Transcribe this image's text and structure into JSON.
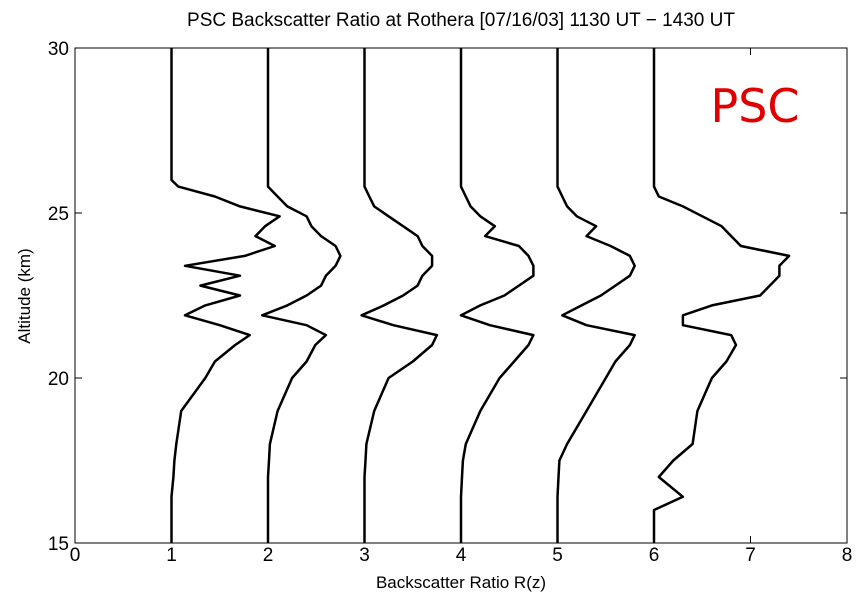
{
  "chart_data": {
    "type": "profile",
    "title": "PSC Backscatter Ratio at Rothera [07/16/03] 1130 UT − 1430 UT",
    "x_label": "Backscatter Ratio R(z)",
    "y_label": "Altitude (km)",
    "annotation": "PSC",
    "annotation_color": "#e00000",
    "xlim": [
      0,
      8
    ],
    "xticks": [
      0,
      1,
      2,
      3,
      4,
      5,
      6,
      7,
      8
    ],
    "ylim": [
      15,
      30
    ],
    "yticks": [
      15,
      20,
      25,
      30
    ],
    "grid": false,
    "y": [
      15,
      16,
      16.4,
      17,
      17.5,
      18,
      19,
      20,
      20.5,
      21,
      21.3,
      21.6,
      21.9,
      22.2,
      22.5,
      22.8,
      23.1,
      23.4,
      23.7,
      24,
      24.3,
      24.6,
      24.9,
      25.2,
      25.5,
      25.8,
      26,
      27,
      28,
      29,
      30
    ],
    "series": [
      {
        "color": "#000000",
        "values": [
          1,
          1,
          1,
          1.02,
          1.03,
          1.05,
          1.1,
          1.35,
          1.45,
          1.66,
          1.81,
          1.5,
          1.14,
          1.35,
          1.71,
          1.3,
          1.71,
          1.14,
          1.76,
          2.07,
          1.87,
          1.97,
          2.12,
          1.71,
          1.45,
          1.07,
          1,
          1,
          1,
          1,
          1
        ]
      },
      {
        "color": "#000000",
        "values": [
          2,
          2,
          2,
          2,
          2.01,
          2.02,
          2.1,
          2.25,
          2.4,
          2.49,
          2.6,
          2.4,
          1.94,
          2.2,
          2.4,
          2.55,
          2.6,
          2.7,
          2.75,
          2.7,
          2.55,
          2.45,
          2.4,
          2.2,
          2.1,
          2.0,
          2,
          2,
          2,
          2,
          2
        ]
      },
      {
        "color": "#000000",
        "values": [
          3,
          3,
          3,
          3,
          3.01,
          3.02,
          3.1,
          3.25,
          3.5,
          3.7,
          3.75,
          3.3,
          2.97,
          3.2,
          3.4,
          3.55,
          3.6,
          3.7,
          3.7,
          3.6,
          3.55,
          3.4,
          3.25,
          3.1,
          3.05,
          3.0,
          3,
          3,
          3,
          3,
          3
        ]
      },
      {
        "color": "#000000",
        "values": [
          4,
          4,
          4,
          4.01,
          4.02,
          4.05,
          4.2,
          4.4,
          4.55,
          4.7,
          4.75,
          4.3,
          4.0,
          4.2,
          4.45,
          4.6,
          4.75,
          4.75,
          4.7,
          4.6,
          4.25,
          4.35,
          4.2,
          4.1,
          4.05,
          4.0,
          4,
          4,
          4,
          4,
          4
        ]
      },
      {
        "color": "#000000",
        "values": [
          5,
          5,
          5,
          5.01,
          5.02,
          5.1,
          5.3,
          5.5,
          5.6,
          5.75,
          5.8,
          5.3,
          5.05,
          5.25,
          5.45,
          5.6,
          5.75,
          5.8,
          5.75,
          5.55,
          5.3,
          5.4,
          5.2,
          5.1,
          5.05,
          5.0,
          5,
          5,
          5,
          5,
          5
        ]
      },
      {
        "color": "#000000",
        "values": [
          6,
          6,
          6.3,
          6.05,
          6.2,
          6.4,
          6.45,
          6.6,
          6.75,
          6.85,
          6.8,
          6.3,
          6.3,
          6.6,
          7.1,
          7.2,
          7.3,
          7.3,
          7.4,
          6.9,
          6.8,
          6.7,
          6.5,
          6.3,
          6.05,
          6.0,
          6,
          6,
          6,
          6,
          6
        ]
      }
    ]
  }
}
